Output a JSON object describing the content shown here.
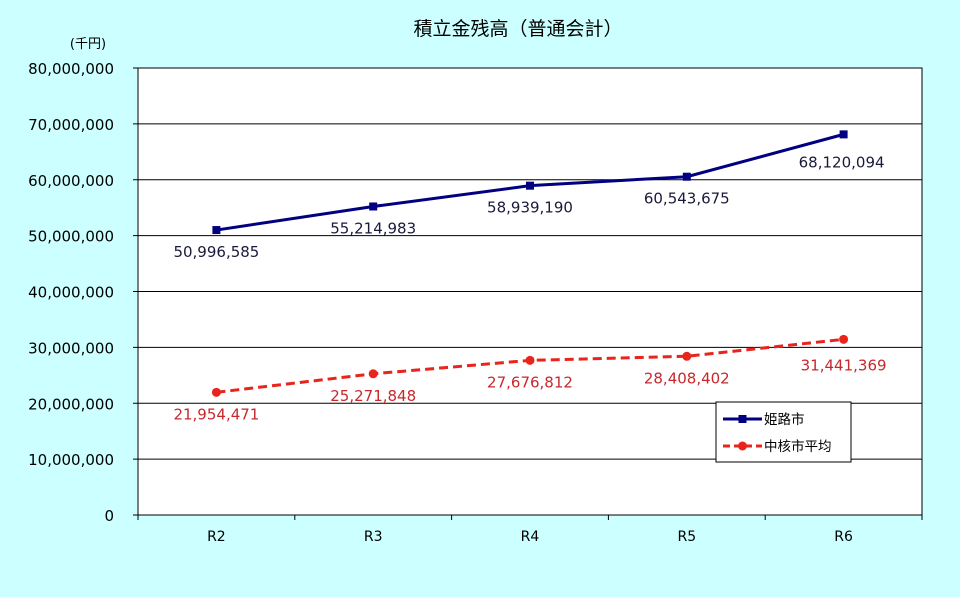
{
  "chart_data": {
    "type": "line",
    "title": "積立金残高（普通会計）",
    "unit_label": "(千円)",
    "categories": [
      "R2",
      "R3",
      "R4",
      "R5",
      "R6"
    ],
    "ylim": [
      0,
      80000000
    ],
    "yticks": [
      {
        "value": 0,
        "label": "0"
      },
      {
        "value": 10000000,
        "label": "10,000,000"
      },
      {
        "value": 20000000,
        "label": "20,000,000"
      },
      {
        "value": 30000000,
        "label": "30,000,000"
      },
      {
        "value": 40000000,
        "label": "40,000,000"
      },
      {
        "value": 50000000,
        "label": "50,000,000"
      },
      {
        "value": 60000000,
        "label": "60,000,000"
      },
      {
        "value": 70000000,
        "label": "70,000,000"
      },
      {
        "value": 80000000,
        "label": "80,000,000"
      }
    ],
    "grid": true,
    "legend_position": "bottom-right",
    "series": [
      {
        "name": "姫路市",
        "values": [
          50996585,
          55214983,
          58939190,
          60543675,
          68120094
        ],
        "labels": [
          "50,996,585",
          "55,214,983",
          "58,939,190",
          "60,543,675",
          "68,120,094"
        ],
        "color": "#000080",
        "marker": "square",
        "line_style": "solid",
        "label_color": "#1a1a3a"
      },
      {
        "name": "中核市平均",
        "values": [
          21954471,
          25271848,
          27676812,
          28408402,
          31441369
        ],
        "labels": [
          "21,954,471",
          "25,271,848",
          "27,676,812",
          "28,408,402",
          "31,441,369"
        ],
        "color": "#e8241c",
        "marker": "circle",
        "line_style": "dashed",
        "label_color": "#c8282c"
      }
    ]
  }
}
